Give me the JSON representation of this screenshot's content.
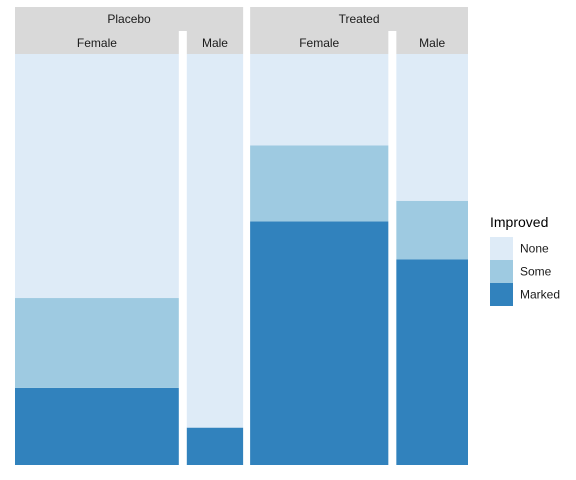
{
  "chart_data": {
    "type": "bar",
    "subtype": "mosaic",
    "title": "",
    "xlabel": "",
    "ylabel": "",
    "panels": [
      {
        "name": "Placebo",
        "subgroups": [
          {
            "name": "Female",
            "count": 32,
            "None": 19,
            "Some": 7,
            "Marked": 6
          },
          {
            "name": "Male",
            "count": 11,
            "None": 10,
            "Some": 0,
            "Marked": 1
          }
        ]
      },
      {
        "name": "Treated",
        "subgroups": [
          {
            "name": "Female",
            "count": 27,
            "None": 6,
            "Some": 5,
            "Marked": 16
          },
          {
            "name": "Male",
            "count": 14,
            "None": 5,
            "Some": 2,
            "Marked": 7
          }
        ]
      }
    ],
    "legend": {
      "title": "Improved",
      "position": "right",
      "entries": [
        {
          "name": "None",
          "color": "#deebf7"
        },
        {
          "name": "Some",
          "color": "#9ecae1"
        },
        {
          "name": "Marked",
          "color": "#3182bd"
        }
      ]
    },
    "grid": false
  }
}
